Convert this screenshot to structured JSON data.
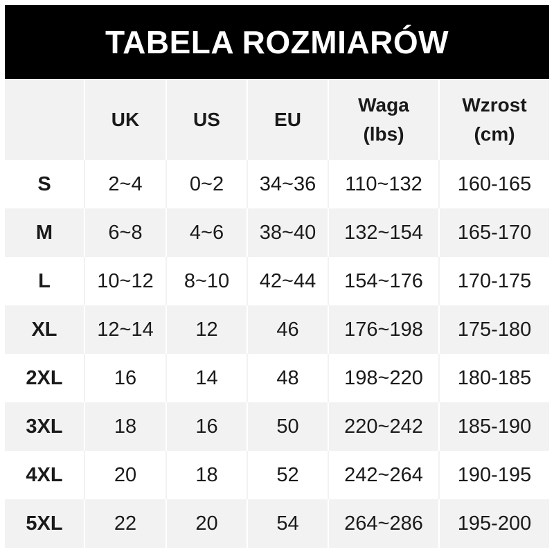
{
  "title": "TABELA ROZMIARÓW",
  "columns": [
    "",
    "UK",
    "US",
    "EU",
    "Waga\n(lbs)",
    "Wzrost\n(cm)"
  ],
  "columns_lines": [
    [
      ""
    ],
    [
      "UK"
    ],
    [
      "US"
    ],
    [
      "EU"
    ],
    [
      "Waga",
      "(lbs)"
    ],
    [
      "Wzrost",
      "(cm)"
    ]
  ],
  "rows": [
    [
      "S",
      "2~4",
      "0~2",
      "34~36",
      "110~132",
      "160-165"
    ],
    [
      "M",
      "6~8",
      "4~6",
      "38~40",
      "132~154",
      "165-170"
    ],
    [
      "L",
      "10~12",
      "8~10",
      "42~44",
      "154~176",
      "170-175"
    ],
    [
      "XL",
      "12~14",
      "12",
      "46",
      "176~198",
      "175-180"
    ],
    [
      "2XL",
      "16",
      "14",
      "48",
      "198~220",
      "180-185"
    ],
    [
      "3XL",
      "18",
      "16",
      "50",
      "220~242",
      "185-190"
    ],
    [
      "4XL",
      "20",
      "18",
      "52",
      "242~264",
      "190-195"
    ],
    [
      "5XL",
      "22",
      "20",
      "54",
      "264~286",
      "195-200"
    ]
  ],
  "colors": {
    "title_bg": "#000000",
    "title_text": "#ffffff",
    "stripe": "#f2f2f2"
  }
}
